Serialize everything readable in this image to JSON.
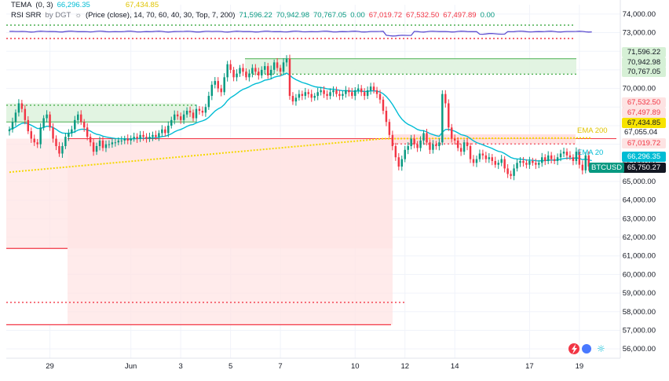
{
  "legend": {
    "tema": {
      "name": "TEMA",
      "params": "(0, 3)",
      "value": "66,296.35",
      "value2": "67,434.85"
    },
    "rsi": {
      "name": "RSI SRR",
      "by": "by DGT",
      "params": "(Price (close), 14, 70, 60, 40, 30, Top, 7, 200)",
      "values": [
        "71,596.22",
        "70,942.98",
        "70,767.05",
        "0.00",
        "67,019.72",
        "67,532.50",
        "67,497.89",
        "0.00"
      ]
    }
  },
  "colors": {
    "up": "#089981",
    "down": "#f23645",
    "ema20": "#00bcd4",
    "ema200": "#f5d800",
    "green_zone": "#4caf50",
    "red_zone": "#f23645",
    "rsi": "#5e4fd0",
    "axis_text": "#131722"
  },
  "right_tags": [
    {
      "label": "71,596.22",
      "kind": "green"
    },
    {
      "label": "70,942.98",
      "kind": "green"
    },
    {
      "label": "70,767.05",
      "kind": "green"
    },
    {
      "label": "67,532.50",
      "kind": "red"
    },
    {
      "label": "67,497.89",
      "kind": "red"
    },
    {
      "label": "67,434.85",
      "kind": "yellow"
    },
    {
      "label": "67,019.72",
      "kind": "red"
    },
    {
      "label": "66,296.35",
      "kind": "teal"
    },
    {
      "label": "65,750.27",
      "kind": "dark"
    }
  ],
  "annotations": {
    "ema200": "EMA 200",
    "ema20": "EMA 20",
    "symbol": "BTCUSD",
    "plain_price": "67,055.04"
  },
  "chart_data": {
    "type": "candlestick",
    "symbol": "BTCUSD",
    "ylim": [
      55500,
      74500
    ],
    "yticks": [
      56000,
      57000,
      58000,
      59000,
      60000,
      61000,
      62000,
      63000,
      64000,
      65000,
      66000,
      67000,
      68000,
      69000,
      70000,
      71000,
      72000,
      73000,
      74000
    ],
    "ytick_labels": [
      "56,000.00",
      "57,000.00",
      "58,000.00",
      "59,000.00",
      "60,000.00",
      "61,000.00",
      "62,000.00",
      "63,000.00",
      "64,000.00",
      "65,000.00",
      "66,000.00",
      "67,000.00",
      "68,000.00",
      "69,000.00",
      "70,000.00",
      "71,000.00",
      "72,000.00",
      "73,000.00",
      "74,000.00"
    ],
    "xticks": [
      {
        "label": "29",
        "bar": 13
      },
      {
        "label": "Jun",
        "bar": 39
      },
      {
        "label": "3",
        "bar": 55
      },
      {
        "label": "5",
        "bar": 71
      },
      {
        "label": "7",
        "bar": 87
      },
      {
        "label": "10",
        "bar": 111
      },
      {
        "label": "12",
        "bar": 127
      },
      {
        "label": "14",
        "bar": 143
      },
      {
        "label": "17",
        "bar": 167
      },
      {
        "label": "19",
        "bar": 183
      }
    ],
    "xlim": [
      0,
      190
    ],
    "closes": [
      67800,
      68200,
      68700,
      69200,
      68900,
      68300,
      67700,
      67300,
      67100,
      67000,
      67900,
      68400,
      68600,
      67900,
      67300,
      66900,
      66500,
      66900,
      67400,
      67600,
      67800,
      68300,
      68600,
      68200,
      67900,
      67400,
      67100,
      66600,
      66900,
      67200,
      66800,
      67000,
      67000,
      67100,
      67100,
      67200,
      67200,
      67300,
      67200,
      67300,
      67400,
      67300,
      67500,
      67400,
      67300,
      67400,
      67500,
      67400,
      67600,
      67800,
      67600,
      68000,
      68300,
      68600,
      68500,
      68300,
      68600,
      68800,
      68700,
      68400,
      68900,
      68800,
      68700,
      69000,
      69600,
      70200,
      70400,
      70000,
      69800,
      70600,
      71300,
      71000,
      70600,
      70800,
      71100,
      70900,
      70600,
      70800,
      71100,
      70900,
      70700,
      71000,
      71200,
      70700,
      71000,
      71400,
      71100,
      70900,
      71400,
      71600,
      69600,
      69300,
      69500,
      69700,
      69600,
      69800,
      69700,
      69500,
      69600,
      69800,
      69900,
      69700,
      69600,
      69800,
      69900,
      69700,
      69600,
      69700,
      69900,
      69800,
      69600,
      69900,
      70000,
      69800,
      69600,
      69900,
      70100,
      69900,
      69700,
      69400,
      68800,
      68200,
      67500,
      66900,
      66300,
      65800,
      66200,
      66700,
      66900,
      67300,
      67000,
      66800,
      67200,
      67600,
      67100,
      66700,
      67000,
      66900,
      67100,
      69700,
      69200,
      67900,
      67300,
      67200,
      66800,
      66600,
      67100,
      66900,
      66200,
      66000,
      66200,
      66500,
      66400,
      66200,
      66300,
      66100,
      65900,
      66000,
      66200,
      65700,
      65400,
      65300,
      65700,
      66000,
      66100,
      66000,
      65900,
      66100,
      66000,
      65900,
      66000,
      66300,
      66100,
      66400,
      66200,
      66100,
      66300,
      66500,
      66600,
      66400,
      66300,
      66100,
      66600,
      65900,
      65600,
      66400,
      65800,
      65750
    ]
  }
}
